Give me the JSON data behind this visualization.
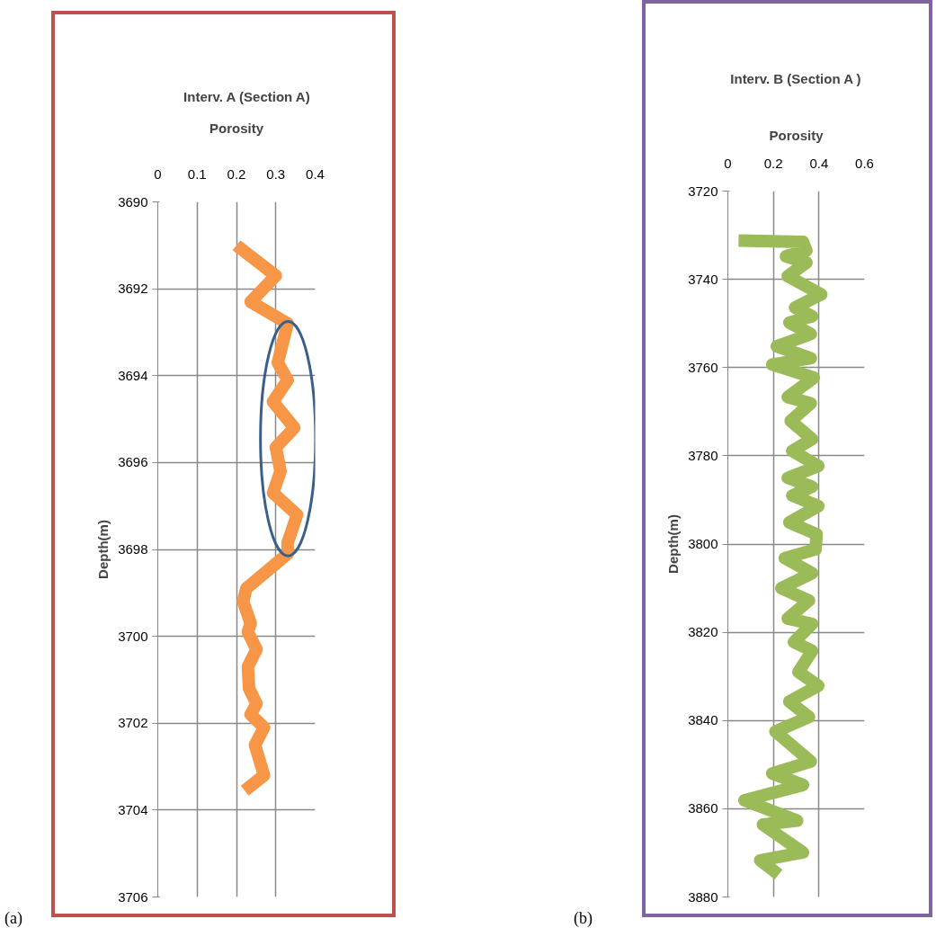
{
  "chart_data": [
    {
      "type": "line",
      "title": "Interv.  A (Section A)",
      "xlabel": "Porosity",
      "ylabel": "Depth(m)",
      "annotations": [
        "(a)"
      ],
      "xlim": [
        0,
        0.4
      ],
      "xticks": [
        0,
        0.1,
        0.2,
        0.3,
        0.4
      ],
      "ylim": [
        3706,
        3690
      ],
      "yticks": [
        3690,
        3692,
        3694,
        3696,
        3698,
        3700,
        3702,
        3704,
        3706
      ],
      "grid": true,
      "line_style": "solid",
      "series": [
        {
          "color": "#f79646",
          "x": [
            0.2,
            0.3,
            0.236,
            0.33,
            0.305,
            0.33,
            0.293,
            0.347,
            0.3,
            0.312,
            0.293,
            0.354,
            0.33,
            0.33,
            0.225,
            0.217,
            0.236,
            0.229,
            0.251,
            0.229,
            0.232,
            0.251,
            0.236,
            0.27,
            0.247,
            0.27,
            0.221
          ],
          "values": [
            3691.0,
            3691.7,
            3692.3,
            3692.8,
            3693.7,
            3694.1,
            3694.6,
            3695.2,
            3695.65,
            3696.2,
            3696.7,
            3697.2,
            3697.85,
            3698.1,
            3698.9,
            3699.2,
            3699.7,
            3699.9,
            3700.3,
            3700.7,
            3701.2,
            3701.55,
            3701.8,
            3702.1,
            3702.5,
            3703.2,
            3703.55
          ]
        }
      ]
    },
    {
      "type": "line",
      "title": "Interv. B (Section A )",
      "xlabel": "Porosity",
      "ylabel": "Depth(m)",
      "annotations": [
        "(b)"
      ],
      "xlim": [
        0,
        0.6
      ],
      "xticks": [
        0,
        0.2,
        0.4,
        0.6
      ],
      "ylim": [
        3880,
        3720
      ],
      "yticks": [
        3720,
        3740,
        3760,
        3780,
        3800,
        3820,
        3840,
        3860,
        3880
      ],
      "grid": true,
      "line_style": "solid",
      "series": [
        {
          "color": "#9bbb59",
          "x": [
            0.047,
            0.33,
            0.345,
            0.255,
            0.345,
            0.263,
            0.41,
            0.295,
            0.37,
            0.27,
            0.364,
            0.215,
            0.364,
            0.195,
            0.377,
            0.263,
            0.364,
            0.276,
            0.37,
            0.283,
            0.397,
            0.263,
            0.37,
            0.283,
            0.397,
            0.27,
            0.39,
            0.385,
            0.25,
            0.37,
            0.235,
            0.356,
            0.263,
            0.37,
            0.29,
            0.37,
            0.31,
            0.397,
            0.27,
            0.356,
            0.209,
            0.364,
            0.195,
            0.33,
            0.073,
            0.304,
            0.154,
            0.33,
            0.142,
            0.223
          ],
          "values": [
            3731.2,
            3731.5,
            3733.5,
            3734.8,
            3736.2,
            3739.3,
            3743.4,
            3746.4,
            3748.4,
            3749.8,
            3752.4,
            3755.2,
            3757.9,
            3759.3,
            3762.3,
            3766.7,
            3768.1,
            3772.1,
            3776.2,
            3778.9,
            3782.3,
            3785,
            3787,
            3789,
            3791.4,
            3795.1,
            3797.8,
            3801.2,
            3803.2,
            3806.6,
            3810,
            3812.8,
            3816.9,
            3818.1,
            3822.2,
            3824.2,
            3829,
            3832.1,
            3835.7,
            3839.2,
            3842.5,
            3849.3,
            3852,
            3854.6,
            3858.1,
            3862.7,
            3863.6,
            3869.9,
            3871.7,
            3874.9
          ]
        }
      ]
    }
  ]
}
